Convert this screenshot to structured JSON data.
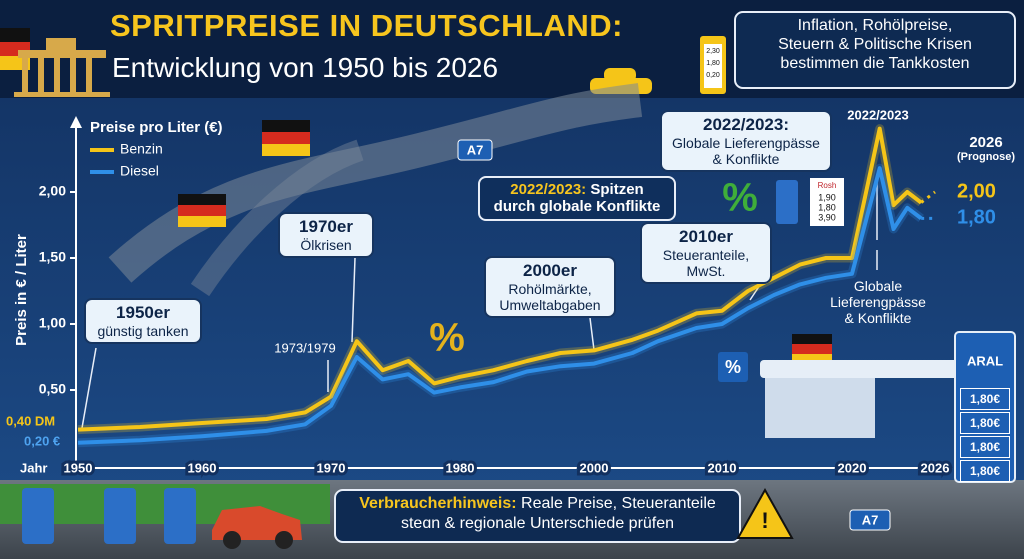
{
  "header": {
    "title": "SPRITPREISE IN DEUTSCHLAND:",
    "subtitle": "Entwicklung von 1950 bis 2026",
    "note": [
      "Inflation, Rohölpreise,",
      "Steuern & Politische Krisen",
      "bestimmen die Tankkosten"
    ],
    "pump_display": [
      "2,30",
      "1,80",
      "0,20"
    ]
  },
  "chart_data": {
    "type": "line",
    "legend_title": "Preise pro Liter (€)",
    "ylabel": "Preis in € / Liter",
    "xlabel": "Jahr",
    "x": [
      1950,
      1955,
      1960,
      1965,
      1968,
      1970,
      1972,
      1974,
      1976,
      1978,
      1980,
      1985,
      1990,
      1995,
      2000,
      2003,
      2005,
      2008,
      2010,
      2012,
      2014,
      2016,
      2018,
      2020,
      2022,
      2023,
      2024,
      2025
    ],
    "series": [
      {
        "name": "Benzin",
        "color": "#f5c518",
        "values": [
          0.2,
          0.22,
          0.25,
          0.28,
          0.33,
          0.45,
          0.87,
          0.65,
          0.72,
          0.55,
          0.6,
          0.65,
          0.72,
          0.78,
          0.8,
          0.88,
          0.95,
          1.08,
          1.1,
          1.25,
          1.35,
          1.45,
          1.5,
          1.5,
          2.48,
          1.9,
          2.0,
          1.92
        ],
        "forecast": {
          "x": 2026,
          "value": 2.0,
          "label": "2,00"
        }
      },
      {
        "name": "Diesel",
        "color": "#2f8fe8",
        "values": [
          0.1,
          0.12,
          0.15,
          0.19,
          0.24,
          0.38,
          0.75,
          0.58,
          0.62,
          0.48,
          0.52,
          0.56,
          0.64,
          0.68,
          0.7,
          0.78,
          0.87,
          0.97,
          1.0,
          1.12,
          1.22,
          1.3,
          1.35,
          1.38,
          2.18,
          1.72,
          1.88,
          1.8
        ],
        "forecast": {
          "x": 2026,
          "value": 1.8,
          "label": "1,80"
        }
      }
    ],
    "xlim": [
      1950,
      2026
    ],
    "xticks": [
      1950,
      1960,
      1970,
      1980,
      2000,
      2010,
      2020,
      2026
    ],
    "ylim": [
      0,
      2.5
    ],
    "yticks": [
      {
        "value": 0.5,
        "label": "0,50"
      },
      {
        "value": 1.0,
        "label": "1,00"
      },
      {
        "value": 1.5,
        "label": "1,50"
      },
      {
        "value": 2.0,
        "label": "2,00"
      }
    ],
    "start_labels": [
      "0,40 DM",
      "0,20 €"
    ],
    "annotations": [
      {
        "title": "1950er",
        "text": [
          "günstig tanken"
        ]
      },
      {
        "title": "1970er",
        "text": [
          "Ölkrisen"
        ]
      },
      {
        "title": "1973/1979"
      },
      {
        "title": "2000er",
        "text": [
          "Rohölmärkte,",
          "Umweltabgaben"
        ]
      },
      {
        "title": "2022/2023:",
        "text": [
          "Spitzen",
          "durch globale Konflikte"
        ]
      },
      {
        "title": "2010er",
        "text": [
          "Steueranteile,",
          "MwSt."
        ]
      },
      {
        "title": "2022/2023:",
        "text": [
          "Globale Lieferengpässe",
          "& Konflikte"
        ]
      },
      {
        "title": "2022/2023"
      },
      {
        "title": "2026",
        "text": [
          "(Prognose)"
        ]
      },
      {
        "text": [
          "Globale",
          "Lieferengpässe",
          "& Konflikte"
        ]
      }
    ]
  },
  "scene": {
    "road_signs": [
      "A7",
      "A7"
    ],
    "station_brand": "ARAL",
    "station_prices": [
      "1,80€",
      "1,80€",
      "1,80€",
      "1,80€"
    ],
    "price_sign": [
      "Rosh",
      "1,90",
      "1,80",
      "3,90"
    ],
    "percent_signs": [
      "%",
      "%",
      "%"
    ]
  },
  "footer": {
    "label": "Verbraucherhinweis:",
    "text": [
      "Reale Preise, Steueranteile",
      "steɑn & regionale Unterschiede prüfen"
    ]
  }
}
